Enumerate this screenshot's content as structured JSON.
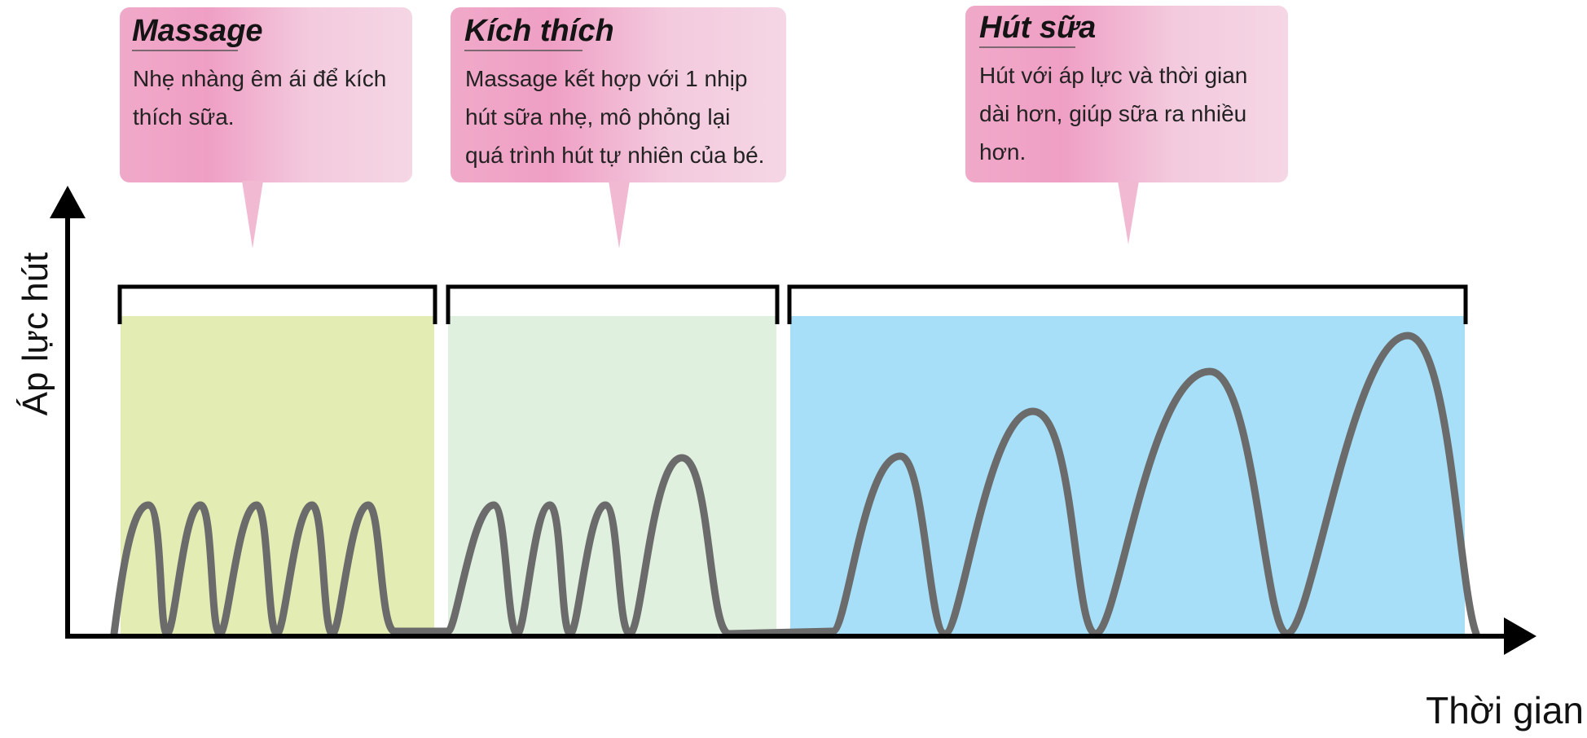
{
  "axes": {
    "y_label": "Áp lực hút",
    "x_label": "Thời gian"
  },
  "colors": {
    "massage_phase": "#e3ecb3",
    "stimulation_phase": "#dff0df",
    "expression_phase": "#a6dff7",
    "callout_pink": "#efa8c9",
    "callout_light": "#f5d6e4",
    "wave": "#6b6b6b",
    "axis": "#000000"
  },
  "phases": [
    {
      "title": "Massage",
      "lines": [
        "Nhẹ nhàng êm ái để kích",
        "thích sữa."
      ]
    },
    {
      "title": "Kích thích",
      "lines": [
        "Massage kết hợp với 1 nhịp",
        "hút sữa nhẹ, mô phỏng lại",
        "quá trình hút tự nhiên của bé."
      ]
    },
    {
      "title": "Hút sữa",
      "lines": [
        "Hút với áp lực và thời gian",
        "dài hơn, giúp sữa ra nhiều",
        "hơn."
      ]
    }
  ]
}
